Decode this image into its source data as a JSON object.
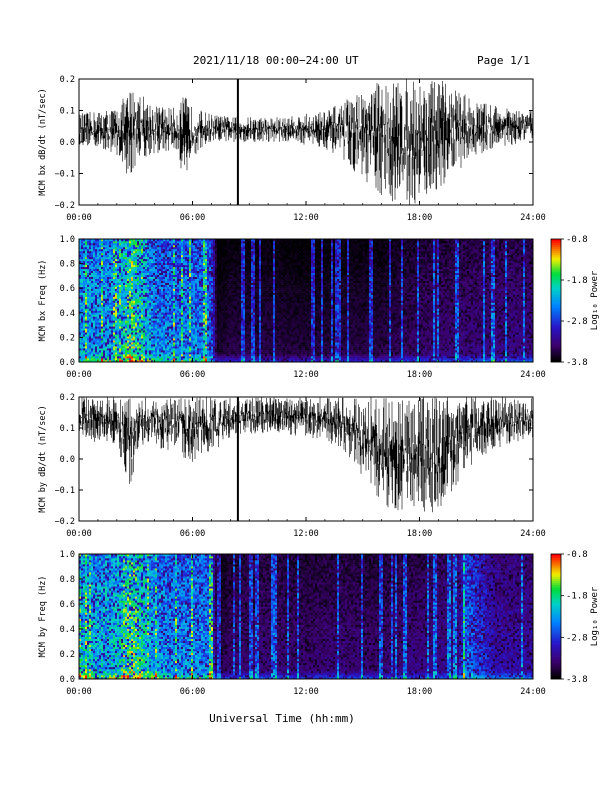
{
  "header": {
    "title": "2021/11/18  00:00−24:00 UT",
    "page": "Page 1/1"
  },
  "xlabel": "Universal Time (hh:mm)",
  "chart_data": [
    {
      "type": "line",
      "ylabel": "MCM bx dB/dt (nT/sec)",
      "xlim": [
        "00:00",
        "24:00"
      ],
      "ylim": [
        -0.2,
        0.2
      ],
      "x_ticks": [
        "00:00",
        "06:00",
        "12:00",
        "18:00",
        "24:00"
      ],
      "y_ticks": [
        "-0.2",
        "-0.1",
        "0.0",
        "0.1",
        "0.2"
      ],
      "envelope_hours": [
        0,
        1,
        2,
        2.8,
        3,
        4,
        5,
        5.6,
        6,
        7,
        8,
        9,
        10,
        11,
        12,
        13,
        14,
        15,
        16,
        17,
        18,
        19,
        20,
        21,
        22,
        23,
        24
      ],
      "envelope_upper": [
        0.09,
        0.1,
        0.11,
        0.18,
        0.17,
        0.12,
        0.11,
        0.15,
        0.11,
        0.09,
        0.08,
        0.08,
        0.08,
        0.08,
        0.09,
        0.1,
        0.13,
        0.17,
        0.2,
        0.2,
        0.2,
        0.2,
        0.17,
        0.13,
        0.12,
        0.1,
        0.1
      ],
      "envelope_lower": [
        -0.01,
        -0.02,
        -0.04,
        -0.14,
        -0.06,
        -0.04,
        -0.03,
        -0.12,
        -0.05,
        -0.01,
        0.0,
        0.0,
        0.0,
        0.0,
        -0.01,
        -0.02,
        -0.06,
        -0.12,
        -0.18,
        -0.2,
        -0.2,
        -0.15,
        -0.09,
        -0.05,
        -0.02,
        -0.01,
        0.0
      ],
      "spike_hours": [
        8.4
      ],
      "spike_range": [
        -0.2,
        0.2
      ]
    },
    {
      "type": "heatmap",
      "ylabel": "MCM bx Freq (Hz)",
      "colorbar_label": "Log₁₀ Power",
      "colorbar_ticks": [
        "-0.8",
        "-1.8",
        "-2.8",
        "-3.8"
      ],
      "clim": [
        -3.8,
        -0.8
      ],
      "xlim": [
        "00:00",
        "24:00"
      ],
      "ylim": [
        0.0,
        1.0
      ],
      "x_ticks": [
        "00:00",
        "06:00",
        "12:00",
        "18:00",
        "24:00"
      ],
      "y_ticks": [
        "0.0",
        "0.2",
        "0.4",
        "0.6",
        "0.8",
        "1.0"
      ],
      "activity_hours": [
        0,
        1,
        2,
        2.8,
        3,
        4,
        5,
        6,
        7,
        7.3,
        8,
        10,
        12,
        14,
        16,
        18,
        20,
        22,
        24
      ],
      "activity_level": [
        0.7,
        0.65,
        0.68,
        0.95,
        0.85,
        0.62,
        0.58,
        0.6,
        0.55,
        0.08,
        0.12,
        0.12,
        0.1,
        0.12,
        0.12,
        0.18,
        0.2,
        0.22,
        0.22
      ]
    },
    {
      "type": "line",
      "ylabel": "MCM by dB/dt (nT/sec)",
      "xlim": [
        "00:00",
        "24:00"
      ],
      "ylim": [
        -0.2,
        0.2
      ],
      "x_ticks": [
        "00:00",
        "06:00",
        "12:00",
        "18:00",
        "24:00"
      ],
      "y_ticks": [
        "-0.2",
        "-0.1",
        "0.0",
        "0.1",
        "0.2"
      ],
      "envelope_hours": [
        0,
        1,
        2,
        2.8,
        3,
        4,
        5,
        6,
        7,
        8,
        9,
        10,
        11,
        12,
        13,
        14,
        15,
        16,
        17,
        18,
        19,
        20,
        21,
        22,
        23,
        24
      ],
      "envelope_upper": [
        0.2,
        0.2,
        0.2,
        0.2,
        0.2,
        0.2,
        0.2,
        0.2,
        0.2,
        0.2,
        0.2,
        0.2,
        0.2,
        0.2,
        0.2,
        0.2,
        0.2,
        0.2,
        0.2,
        0.2,
        0.2,
        0.2,
        0.2,
        0.2,
        0.2,
        0.2
      ],
      "envelope_lower": [
        0.08,
        0.05,
        0.04,
        -0.11,
        0.03,
        0.04,
        0.02,
        -0.01,
        0.02,
        0.06,
        0.08,
        0.08,
        0.08,
        0.07,
        0.06,
        0.03,
        -0.06,
        -0.15,
        -0.18,
        -0.19,
        -0.17,
        -0.08,
        0.0,
        0.03,
        0.05,
        0.07
      ],
      "spike_hours": [
        8.4
      ],
      "spike_range": [
        -0.2,
        0.2
      ]
    },
    {
      "type": "heatmap",
      "ylabel": "MCM by Freq (Hz)",
      "colorbar_label": "Log₁₀ Power",
      "colorbar_ticks": [
        "-0.8",
        "-1.8",
        "-2.8",
        "-3.8"
      ],
      "clim": [
        -3.8,
        -0.8
      ],
      "xlim": [
        "00:00",
        "24:00"
      ],
      "ylim": [
        0.0,
        1.0
      ],
      "x_ticks": [
        "00:00",
        "06:00",
        "12:00",
        "18:00",
        "24:00"
      ],
      "y_ticks": [
        "0.0",
        "0.2",
        "0.4",
        "0.6",
        "0.8",
        "1.0"
      ],
      "activity_hours": [
        0,
        1,
        2,
        2.8,
        3,
        4,
        5,
        6,
        7,
        7.3,
        8,
        10,
        12,
        14,
        16,
        18,
        20,
        20.5,
        22,
        24
      ],
      "activity_level": [
        0.75,
        0.7,
        0.72,
        0.95,
        0.88,
        0.66,
        0.6,
        0.62,
        0.58,
        0.1,
        0.18,
        0.2,
        0.18,
        0.2,
        0.18,
        0.22,
        0.25,
        0.55,
        0.3,
        0.28
      ]
    }
  ]
}
